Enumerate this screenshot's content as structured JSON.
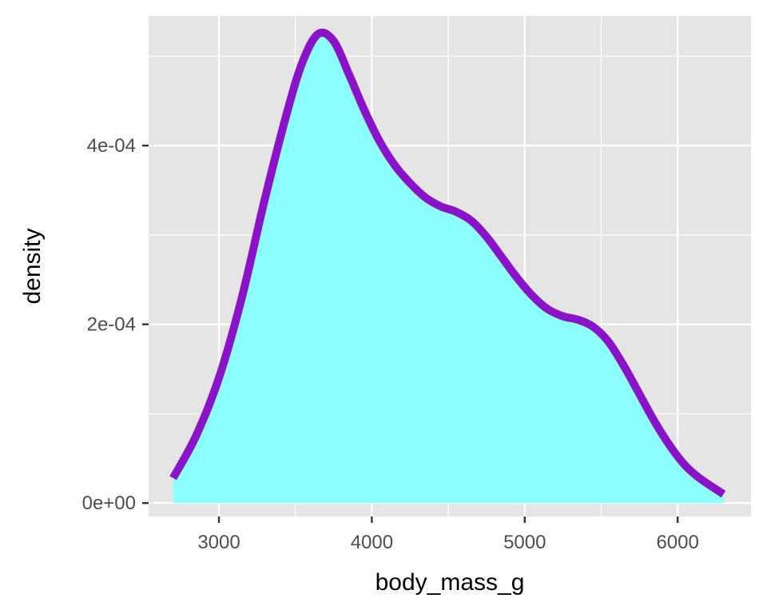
{
  "chart_data": {
    "type": "area",
    "xlabel": "body_mass_g",
    "ylabel": "density",
    "xlim": [
      2540,
      6480
    ],
    "ylim": [
      -1.5e-05,
      0.000545
    ],
    "x_ticks": [
      3000,
      4000,
      5000,
      6000
    ],
    "x_tick_labels": [
      "3000",
      "4000",
      "5000",
      "6000"
    ],
    "y_ticks": [
      0,
      0.0002,
      0.0004
    ],
    "y_tick_labels": [
      "0e+00",
      "2e-04",
      "4e-04"
    ],
    "grid": true,
    "legend": "none",
    "colors": {
      "panel_background": "#e5e5e5",
      "grid": "#ffffff",
      "fill": "#8cffff",
      "line": "#8a12c8"
    },
    "series": [
      {
        "x": [
          2700,
          2850,
          3000,
          3150,
          3300,
          3450,
          3550,
          3650,
          3750,
          3850,
          3950,
          4050,
          4150,
          4250,
          4350,
          4450,
          4550,
          4650,
          4750,
          4850,
          4950,
          5050,
          5150,
          5250,
          5350,
          5450,
          5550,
          5650,
          5750,
          5850,
          5950,
          6050,
          6150,
          6300
        ],
        "y": [
          2.8e-05,
          7.5e-05,
          0.00014,
          0.00023,
          0.00034,
          0.00044,
          0.000495,
          0.000525,
          0.000517,
          0.00048,
          0.00044,
          0.000405,
          0.000378,
          0.000358,
          0.000342,
          0.000332,
          0.000326,
          0.000316,
          0.000298,
          0.000275,
          0.000252,
          0.000232,
          0.000217,
          0.000209,
          0.000205,
          0.000197,
          0.00018,
          0.000153,
          0.000122,
          9.1e-05,
          6.4e-05,
          4.2e-05,
          2.7e-05,
          1e-05
        ]
      }
    ]
  }
}
